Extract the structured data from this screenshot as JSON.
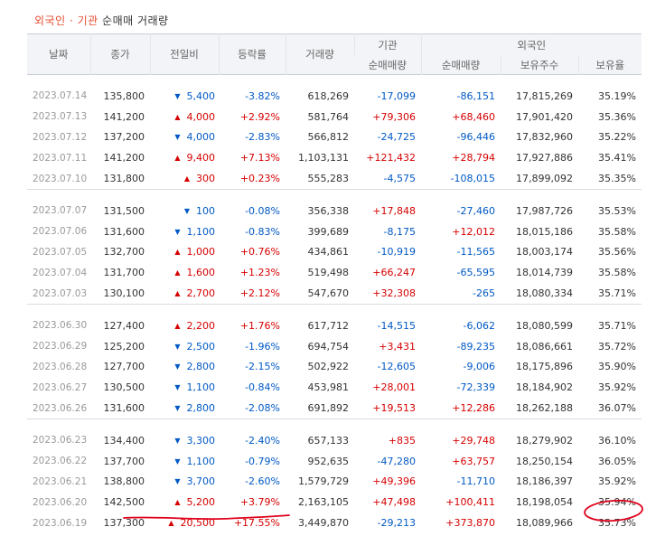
{
  "title": {
    "part1": "외국인",
    "sep": "·",
    "part2": "기관",
    "part3": "순매매 거래량"
  },
  "headers": {
    "date": "날짜",
    "close": "종가",
    "change": "전일비",
    "rate": "등락률",
    "volume": "거래량",
    "inst": "기관",
    "frgn": "외국인",
    "inst_net": "순매매량",
    "frgn_net": "순매매량",
    "frgn_hold": "보유주수",
    "frgn_ratio": "보유율"
  },
  "colors": {
    "up": "#d60000",
    "down": "#0059c4",
    "title_accent": "#e84b2f",
    "annotation": "#e0001b"
  },
  "groups": [
    [
      {
        "date": "2023.07.14",
        "close": "135,800",
        "dir": "down",
        "change": "5,400",
        "rate": "-3.82%",
        "volume": "618,269",
        "inst": "-17,099",
        "frgn": "-86,151",
        "hold": "17,815,269",
        "ratio": "35.19%"
      },
      {
        "date": "2023.07.13",
        "close": "141,200",
        "dir": "up",
        "change": "4,000",
        "rate": "+2.92%",
        "volume": "581,764",
        "inst": "+79,306",
        "frgn": "+68,460",
        "hold": "17,901,420",
        "ratio": "35.36%"
      },
      {
        "date": "2023.07.12",
        "close": "137,200",
        "dir": "down",
        "change": "4,000",
        "rate": "-2.83%",
        "volume": "566,812",
        "inst": "-24,725",
        "frgn": "-96,446",
        "hold": "17,832,960",
        "ratio": "35.22%"
      },
      {
        "date": "2023.07.11",
        "close": "141,200",
        "dir": "up",
        "change": "9,400",
        "rate": "+7.13%",
        "volume": "1,103,131",
        "inst": "+121,432",
        "frgn": "+28,794",
        "hold": "17,927,886",
        "ratio": "35.41%"
      },
      {
        "date": "2023.07.10",
        "close": "131,800",
        "dir": "up",
        "change": "300",
        "rate": "+0.23%",
        "volume": "555,283",
        "inst": "-4,575",
        "frgn": "-108,015",
        "hold": "17,899,092",
        "ratio": "35.35%"
      }
    ],
    [
      {
        "date": "2023.07.07",
        "close": "131,500",
        "dir": "down",
        "change": "100",
        "rate": "-0.08%",
        "volume": "356,338",
        "inst": "+17,848",
        "frgn": "-27,460",
        "hold": "17,987,726",
        "ratio": "35.53%"
      },
      {
        "date": "2023.07.06",
        "close": "131,600",
        "dir": "down",
        "change": "1,100",
        "rate": "-0.83%",
        "volume": "399,689",
        "inst": "-8,175",
        "frgn": "+12,012",
        "hold": "18,015,186",
        "ratio": "35.58%"
      },
      {
        "date": "2023.07.05",
        "close": "132,700",
        "dir": "up",
        "change": "1,000",
        "rate": "+0.76%",
        "volume": "434,861",
        "inst": "-10,919",
        "frgn": "-11,565",
        "hold": "18,003,174",
        "ratio": "35.56%"
      },
      {
        "date": "2023.07.04",
        "close": "131,700",
        "dir": "up",
        "change": "1,600",
        "rate": "+1.23%",
        "volume": "519,498",
        "inst": "+66,247",
        "frgn": "-65,595",
        "hold": "18,014,739",
        "ratio": "35.58%"
      },
      {
        "date": "2023.07.03",
        "close": "130,100",
        "dir": "up",
        "change": "2,700",
        "rate": "+2.12%",
        "volume": "547,670",
        "inst": "+32,308",
        "frgn": "-265",
        "hold": "18,080,334",
        "ratio": "35.71%"
      }
    ],
    [
      {
        "date": "2023.06.30",
        "close": "127,400",
        "dir": "up",
        "change": "2,200",
        "rate": "+1.76%",
        "volume": "617,712",
        "inst": "-14,515",
        "frgn": "-6,062",
        "hold": "18,080,599",
        "ratio": "35.71%"
      },
      {
        "date": "2023.06.29",
        "close": "125,200",
        "dir": "down",
        "change": "2,500",
        "rate": "-1.96%",
        "volume": "694,754",
        "inst": "+3,431",
        "frgn": "-89,235",
        "hold": "18,086,661",
        "ratio": "35.72%"
      },
      {
        "date": "2023.06.28",
        "close": "127,700",
        "dir": "down",
        "change": "2,800",
        "rate": "-2.15%",
        "volume": "502,922",
        "inst": "-12,605",
        "frgn": "-9,006",
        "hold": "18,175,896",
        "ratio": "35.90%"
      },
      {
        "date": "2023.06.27",
        "close": "130,500",
        "dir": "down",
        "change": "1,100",
        "rate": "-0.84%",
        "volume": "453,981",
        "inst": "+28,001",
        "frgn": "-72,339",
        "hold": "18,184,902",
        "ratio": "35.92%"
      },
      {
        "date": "2023.06.26",
        "close": "131,600",
        "dir": "down",
        "change": "2,800",
        "rate": "-2.08%",
        "volume": "691,892",
        "inst": "+19,513",
        "frgn": "+12,286",
        "hold": "18,262,188",
        "ratio": "36.07%"
      }
    ],
    [
      {
        "date": "2023.06.23",
        "close": "134,400",
        "dir": "down",
        "change": "3,300",
        "rate": "-2.40%",
        "volume": "657,133",
        "inst": "+835",
        "frgn": "+29,748",
        "hold": "18,279,902",
        "ratio": "36.10%"
      },
      {
        "date": "2023.06.22",
        "close": "137,700",
        "dir": "down",
        "change": "1,100",
        "rate": "-0.79%",
        "volume": "952,635",
        "inst": "-47,280",
        "frgn": "+63,757",
        "hold": "18,250,154",
        "ratio": "36.05%"
      },
      {
        "date": "2023.06.21",
        "close": "138,800",
        "dir": "down",
        "change": "3,700",
        "rate": "-2.60%",
        "volume": "1,579,729",
        "inst": "+49,396",
        "frgn": "-11,710",
        "hold": "18,186,397",
        "ratio": "35.92%"
      },
      {
        "date": "2023.06.20",
        "close": "142,500",
        "dir": "up",
        "change": "5,200",
        "rate": "+3.79%",
        "volume": "2,163,105",
        "inst": "+47,498",
        "frgn": "+100,411",
        "hold": "18,198,054",
        "ratio": "35.94%"
      },
      {
        "date": "2023.06.19",
        "close": "137,300",
        "dir": "up",
        "change": "20,500",
        "rate": "+17.55%",
        "volume": "3,449,870",
        "inst": "-29,213",
        "frgn": "+373,870",
        "hold": "18,089,966",
        "ratio": "35.73%"
      }
    ]
  ],
  "icons": {
    "up": "triangle-up-icon",
    "down": "triangle-down-icon"
  }
}
